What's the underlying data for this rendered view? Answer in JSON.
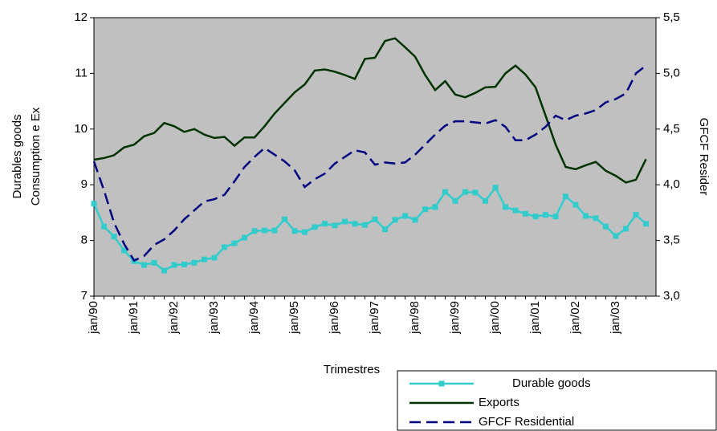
{
  "chart_data": {
    "type": "line",
    "y_label": [
      "Durables goods",
      "Consumption e Ex"
    ],
    "y2_label": "GFCF Resider",
    "x_label": "Trimestres",
    "categories": [
      "jan/90",
      null,
      null,
      null,
      "jan/91",
      null,
      null,
      null,
      "jan/92",
      null,
      null,
      null,
      "jan/93",
      null,
      null,
      null,
      "jan/94",
      null,
      null,
      null,
      "jan/95",
      null,
      null,
      null,
      "jan/96",
      null,
      null,
      null,
      "jan/97",
      null,
      null,
      null,
      "jan/98",
      null,
      null,
      null,
      "jan/99",
      null,
      null,
      null,
      "jan/00",
      null,
      null,
      null,
      "jan/01",
      null,
      null,
      null,
      "jan/02",
      null,
      null,
      null,
      "jan/03",
      null,
      null,
      null
    ],
    "ylim": [
      7,
      12
    ],
    "yticks": [
      7,
      8,
      9,
      10,
      11,
      12
    ],
    "y2lim": [
      3.0,
      5.5
    ],
    "y2ticks": [
      {
        "value": 3.0,
        "label": "3,0"
      },
      {
        "value": 3.5,
        "label": "3,5"
      },
      {
        "value": 4.0,
        "label": "4,0"
      },
      {
        "value": 4.5,
        "label": "4,5"
      },
      {
        "value": 5.0,
        "label": "5,0"
      },
      {
        "value": 5.5,
        "label": "5,5"
      }
    ],
    "plot_background": "#c0c0c0",
    "series": [
      {
        "name": "Durable goods",
        "color": "#33cccc",
        "marker": "square",
        "axis": "y",
        "values": [
          8.66,
          8.25,
          8.07,
          7.82,
          7.63,
          7.56,
          7.6,
          7.46,
          7.56,
          7.57,
          7.6,
          7.66,
          7.69,
          7.88,
          7.95,
          8.05,
          8.17,
          8.18,
          8.18,
          8.38,
          8.17,
          8.15,
          8.24,
          8.3,
          8.27,
          8.34,
          8.3,
          8.28,
          8.38,
          8.2,
          8.37,
          8.44,
          8.37,
          8.56,
          8.6,
          8.87,
          8.71,
          8.87,
          8.86,
          8.71,
          8.95,
          8.6,
          8.54,
          8.48,
          8.43,
          8.46,
          8.43,
          8.79,
          8.64,
          8.44,
          8.4,
          8.25,
          8.08,
          8.21,
          8.46,
          8.3
        ]
      },
      {
        "name": "Exports",
        "color": "#003300",
        "axis": "y",
        "values": [
          9.45,
          9.48,
          9.53,
          9.67,
          9.72,
          9.87,
          9.93,
          10.11,
          10.05,
          9.95,
          10.0,
          9.9,
          9.84,
          9.86,
          9.7,
          9.85,
          9.85,
          10.05,
          10.28,
          10.47,
          10.66,
          10.8,
          11.05,
          11.07,
          11.03,
          10.97,
          10.9,
          11.26,
          11.28,
          11.58,
          11.63,
          11.47,
          11.3,
          10.97,
          10.7,
          10.86,
          10.62,
          10.57,
          10.65,
          10.75,
          10.76,
          11.0,
          11.14,
          10.98,
          10.75,
          10.24,
          9.72,
          9.32,
          9.28,
          9.35,
          9.41,
          9.25,
          9.16,
          9.04,
          9.09,
          9.46
        ]
      },
      {
        "name": "GFCF Residential",
        "color": "#000080",
        "dash": true,
        "axis": "y2",
        "values": [
          4.21,
          3.95,
          3.66,
          3.47,
          3.32,
          3.36,
          3.46,
          3.51,
          3.59,
          3.69,
          3.77,
          3.85,
          3.87,
          3.91,
          4.03,
          4.16,
          4.25,
          4.33,
          4.27,
          4.21,
          4.13,
          3.98,
          4.05,
          4.1,
          4.19,
          4.25,
          4.31,
          4.29,
          4.18,
          4.2,
          4.19,
          4.2,
          4.27,
          4.36,
          4.45,
          4.53,
          4.57,
          4.57,
          4.56,
          4.55,
          4.58,
          4.52,
          4.4,
          4.4,
          4.45,
          4.52,
          4.62,
          4.58,
          4.62,
          4.64,
          4.67,
          4.74,
          4.77,
          4.82,
          5.0,
          5.07
        ]
      }
    ]
  }
}
